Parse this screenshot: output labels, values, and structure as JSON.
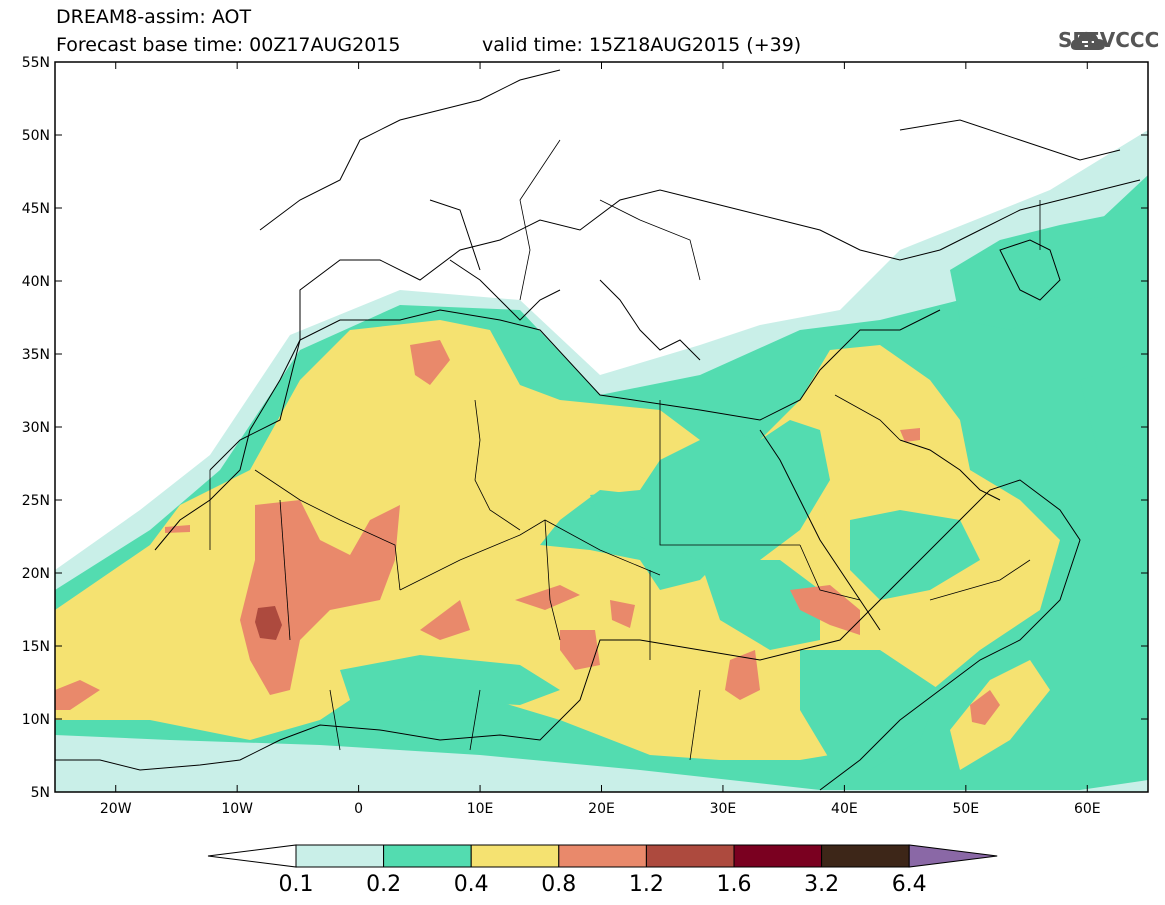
{
  "header": {
    "line1": "DREAM8-assim: AOT",
    "line2": "Forecast base time: 00Z17AUG2015",
    "line3": "valid time: 15Z18AUG2015 (+39)"
  },
  "logo": {
    "text": "SEEVCCC",
    "icon": "cloud-icon"
  },
  "map": {
    "lon_range": [
      -25,
      65
    ],
    "lat_range": [
      5,
      55
    ],
    "lat_ticks": [
      "55N",
      "50N",
      "45N",
      "40N",
      "35N",
      "30N",
      "25N",
      "20N",
      "15N",
      "10N",
      "5N"
    ],
    "lon_ticks": [
      "20W",
      "10W",
      "0",
      "10E",
      "20E",
      "30E",
      "40E",
      "50E",
      "60E"
    ]
  },
  "colorbar": {
    "labels": [
      "0.1",
      "0.2",
      "0.4",
      "0.8",
      "1.2",
      "1.6",
      "3.2",
      "6.4"
    ],
    "colors": [
      "#ffffff",
      "#c9efe8",
      "#53dcb0",
      "#f5e271",
      "#e9896b",
      "#ad4a3e",
      "#7a0020",
      "#3d2618",
      "#8a68a6"
    ]
  }
}
